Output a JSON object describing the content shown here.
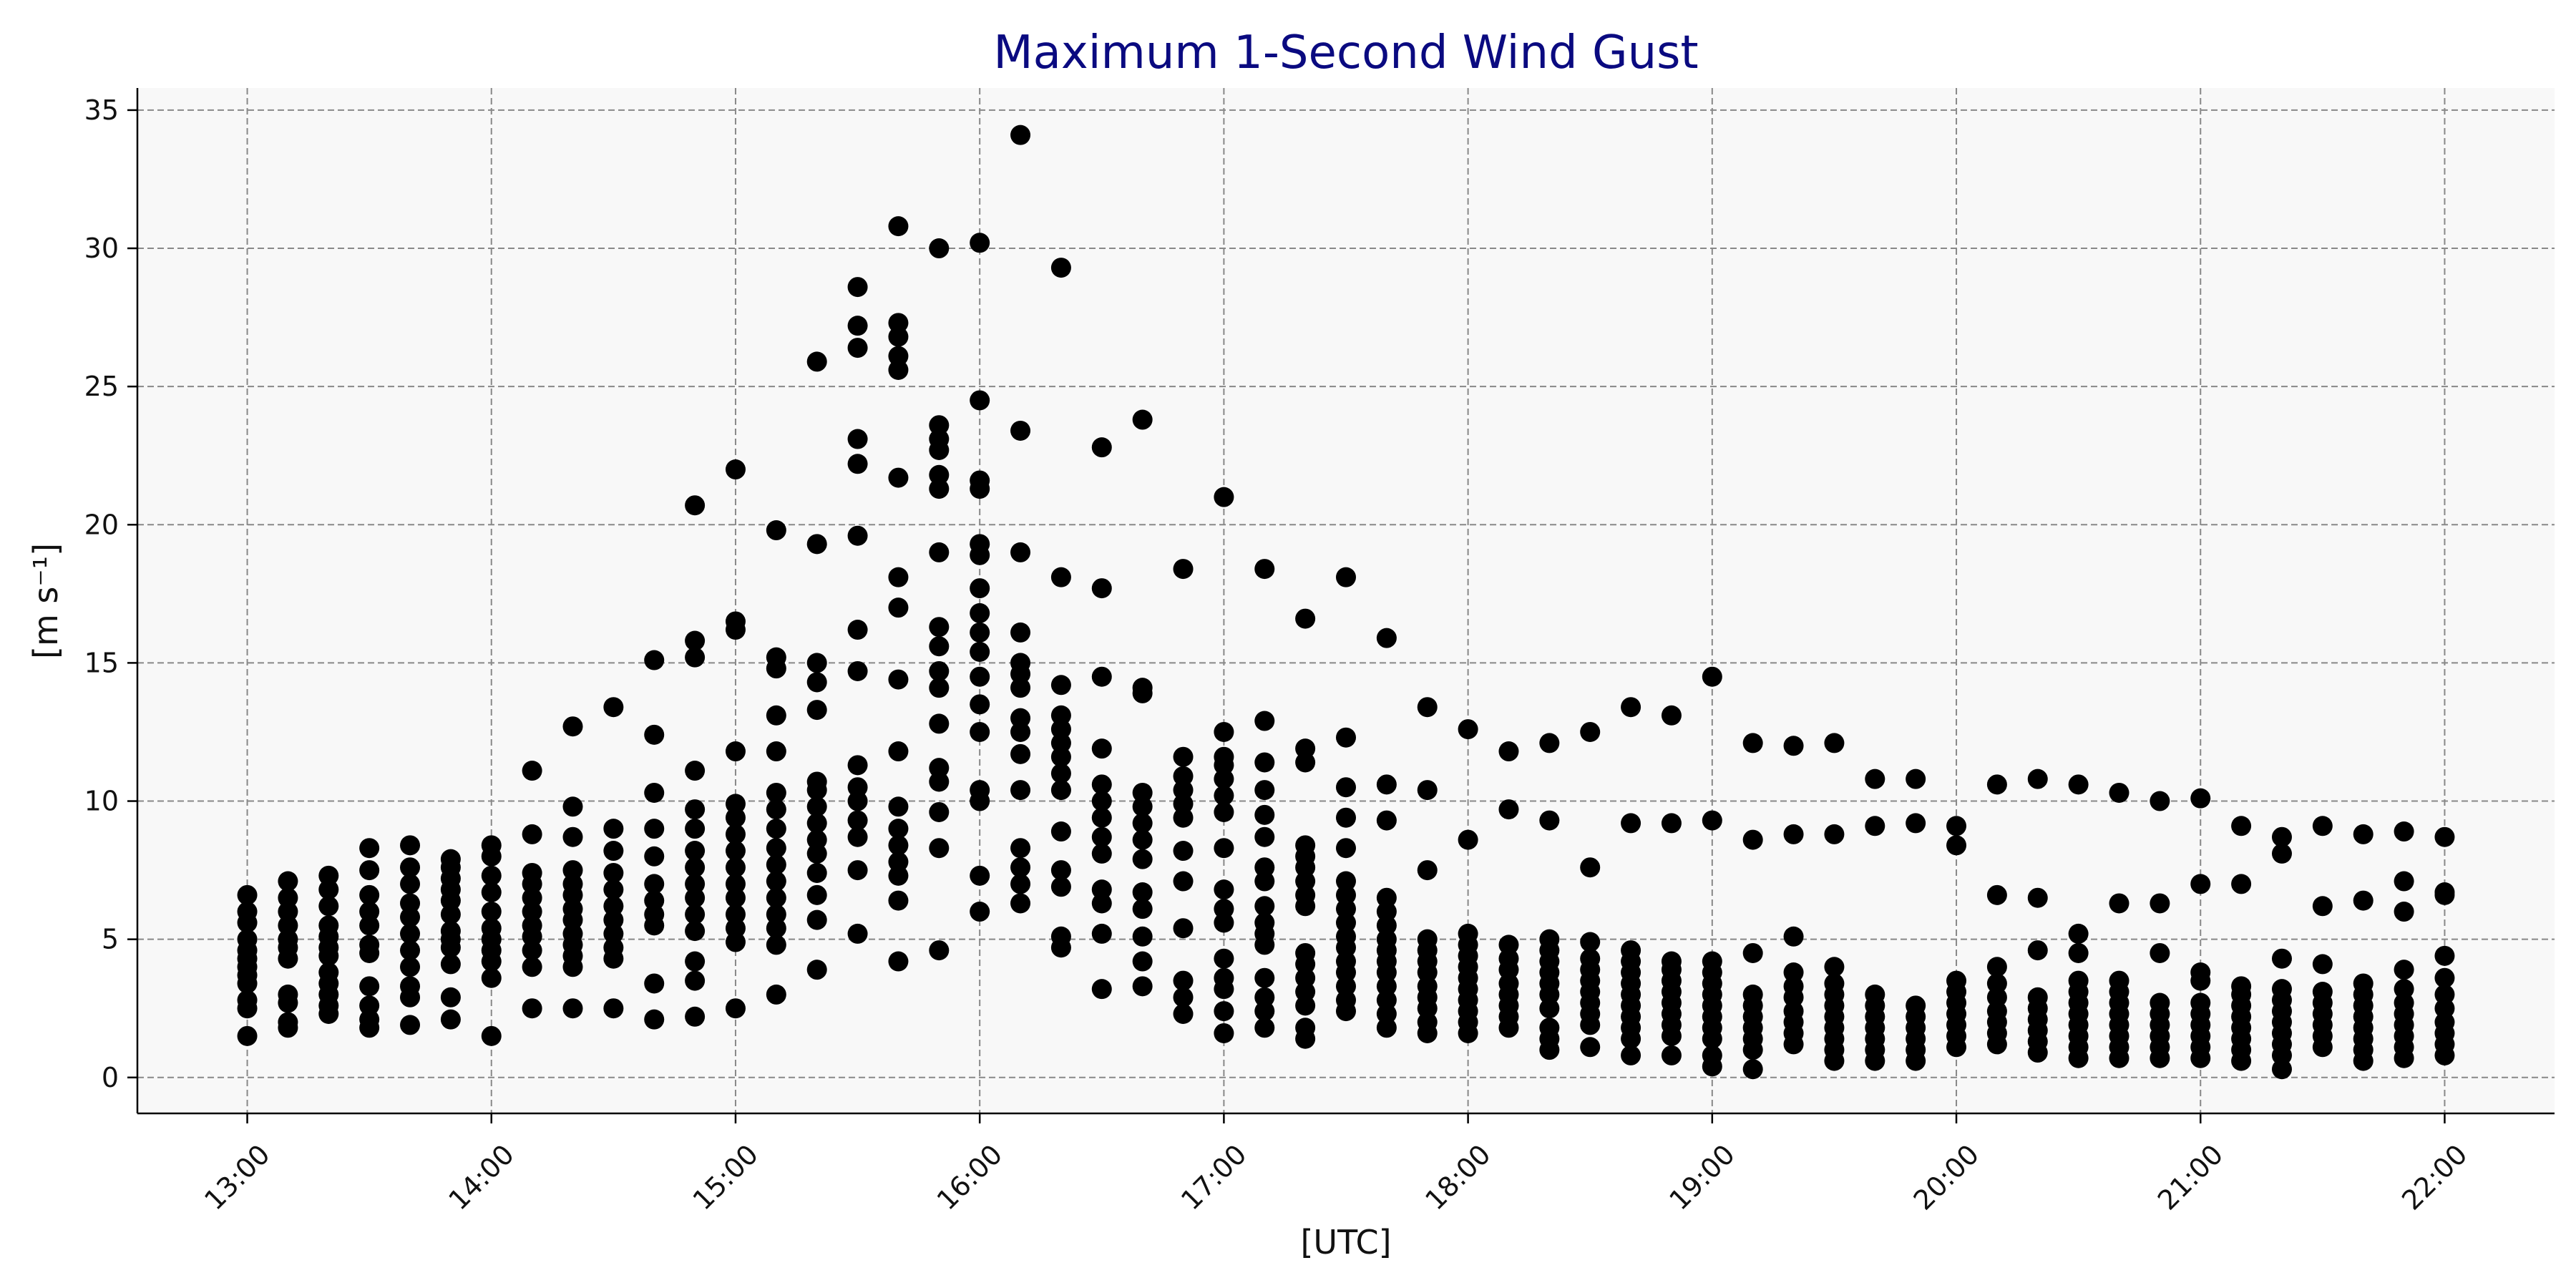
{
  "chart_data": {
    "type": "scatter",
    "title": "Maximum 1-Second Wind Gust",
    "xlabel": "[UTC]",
    "ylabel": "[m s⁻¹]",
    "x_unit": "UTC time (hours)",
    "xlim": [
      12.55,
      22.45
    ],
    "ylim": [
      -1.3,
      35.8
    ],
    "grid": true,
    "background_color": "#f8f8f8",
    "marker_color": "#000000",
    "title_color": "#0a0a80",
    "x_ticks": [
      {
        "value": 13,
        "label": "13:00"
      },
      {
        "value": 14,
        "label": "14:00"
      },
      {
        "value": 15,
        "label": "15:00"
      },
      {
        "value": 16,
        "label": "16:00"
      },
      {
        "value": 17,
        "label": "17:00"
      },
      {
        "value": 18,
        "label": "18:00"
      },
      {
        "value": 19,
        "label": "19:00"
      },
      {
        "value": 20,
        "label": "20:00"
      },
      {
        "value": 21,
        "label": "21:00"
      },
      {
        "value": 22,
        "label": "22:00"
      }
    ],
    "y_ticks": [
      0,
      5,
      10,
      15,
      20,
      25,
      30,
      35
    ],
    "series": [
      {
        "x": "13:00",
        "values": [
          1.5,
          2.5,
          2.8,
          3.4,
          3.7,
          4.0,
          4.3,
          4.6,
          5.0,
          5.6,
          6.0,
          6.6
        ]
      },
      {
        "x": "13:10",
        "values": [
          1.8,
          2.0,
          2.7,
          3.0,
          4.3,
          4.7,
          5.0,
          5.5,
          6.0,
          6.5,
          7.1
        ]
      },
      {
        "x": "13:20",
        "values": [
          2.3,
          2.6,
          3.0,
          3.4,
          3.8,
          4.4,
          4.7,
          5.1,
          5.5,
          6.2,
          6.8,
          7.3
        ]
      },
      {
        "x": "13:30",
        "values": [
          1.8,
          2.1,
          2.6,
          3.3,
          4.5,
          4.8,
          5.5,
          6.0,
          6.6,
          7.5,
          8.3
        ]
      },
      {
        "x": "13:40",
        "values": [
          1.9,
          2.9,
          3.3,
          4.0,
          4.6,
          5.2,
          5.8,
          6.3,
          7.0,
          7.6,
          8.4
        ]
      },
      {
        "x": "13:50",
        "values": [
          2.1,
          2.9,
          4.1,
          4.7,
          5.0,
          5.3,
          5.9,
          6.4,
          6.8,
          7.2,
          7.6,
          7.9
        ]
      },
      {
        "x": "14:00",
        "values": [
          1.5,
          3.6,
          4.2,
          4.6,
          5.0,
          5.4,
          6.0,
          6.7,
          7.3,
          8.0,
          8.4
        ]
      },
      {
        "x": "14:10",
        "values": [
          2.5,
          4.0,
          4.6,
          5.1,
          5.5,
          6.0,
          6.5,
          7.0,
          7.4,
          8.8,
          11.1
        ]
      },
      {
        "x": "14:20",
        "values": [
          2.5,
          4.0,
          4.4,
          4.8,
          5.2,
          5.7,
          6.1,
          6.6,
          7.0,
          7.5,
          8.7,
          9.8,
          12.7
        ]
      },
      {
        "x": "14:30",
        "values": [
          2.5,
          4.3,
          4.7,
          5.2,
          5.7,
          6.2,
          6.8,
          7.4,
          8.2,
          9.0,
          13.4
        ]
      },
      {
        "x": "14:40",
        "values": [
          2.1,
          3.4,
          5.5,
          5.9,
          6.4,
          7.0,
          8.0,
          9.0,
          10.3,
          12.4,
          15.1
        ]
      },
      {
        "x": "14:50",
        "values": [
          2.2,
          3.5,
          4.2,
          5.3,
          5.9,
          6.5,
          7.0,
          7.6,
          8.2,
          9.0,
          9.7,
          11.1,
          15.2,
          15.8,
          20.7
        ]
      },
      {
        "x": "15:00",
        "values": [
          2.5,
          4.9,
          5.4,
          5.9,
          6.5,
          7.0,
          7.6,
          8.2,
          8.8,
          9.4,
          9.9,
          11.8,
          16.2,
          16.5,
          22.0
        ]
      },
      {
        "x": "15:10",
        "values": [
          3.0,
          4.8,
          5.4,
          5.9,
          6.5,
          7.1,
          7.7,
          8.3,
          9.0,
          9.7,
          10.3,
          11.8,
          13.1,
          14.8,
          15.2,
          19.8
        ]
      },
      {
        "x": "15:20",
        "values": [
          3.9,
          5.7,
          6.6,
          7.4,
          8.1,
          8.6,
          9.2,
          9.8,
          10.4,
          10.7,
          13.3,
          14.3,
          15.0,
          19.3,
          25.9
        ]
      },
      {
        "x": "15:30",
        "values": [
          5.2,
          7.5,
          8.7,
          9.3,
          10.0,
          10.5,
          11.3,
          14.7,
          16.2,
          19.6,
          22.2,
          23.1,
          26.4,
          27.2,
          28.6
        ]
      },
      {
        "x": "15:40",
        "values": [
          4.2,
          6.4,
          7.3,
          7.8,
          8.4,
          9.0,
          9.8,
          11.8,
          14.4,
          17.0,
          18.1,
          21.7,
          25.6,
          26.1,
          26.8,
          27.3,
          30.8
        ]
      },
      {
        "x": "15:50",
        "values": [
          4.6,
          8.3,
          9.6,
          10.7,
          11.2,
          12.8,
          14.1,
          14.7,
          15.6,
          16.3,
          19.0,
          21.3,
          21.8,
          22.7,
          23.1,
          23.6,
          30.0
        ]
      },
      {
        "x": "16:00",
        "values": [
          6.0,
          7.3,
          10.0,
          10.4,
          12.5,
          13.5,
          14.5,
          15.4,
          16.1,
          16.8,
          17.7,
          18.9,
          19.3,
          21.3,
          21.6,
          24.5,
          30.2
        ]
      },
      {
        "x": "16:10",
        "values": [
          6.3,
          7.0,
          7.6,
          8.3,
          10.4,
          11.7,
          12.5,
          13.0,
          14.1,
          14.6,
          15.0,
          16.1,
          19.0,
          23.4,
          34.1
        ]
      },
      {
        "x": "16:20",
        "values": [
          4.7,
          5.1,
          6.9,
          7.5,
          8.9,
          10.4,
          11.0,
          11.6,
          12.1,
          12.6,
          13.1,
          14.2,
          18.1,
          29.3
        ]
      },
      {
        "x": "16:30",
        "values": [
          3.2,
          5.2,
          6.3,
          6.8,
          8.1,
          8.7,
          9.4,
          10.0,
          10.6,
          11.9,
          14.5,
          17.7,
          22.8
        ]
      },
      {
        "x": "16:40",
        "values": [
          3.3,
          4.2,
          5.1,
          6.1,
          6.7,
          7.9,
          8.6,
          9.2,
          9.8,
          10.3,
          13.9,
          14.1,
          23.8
        ]
      },
      {
        "x": "16:50",
        "values": [
          2.3,
          2.9,
          3.5,
          5.4,
          7.1,
          8.2,
          9.4,
          9.9,
          10.4,
          10.9,
          11.6,
          18.4
        ]
      },
      {
        "x": "17:00",
        "values": [
          1.6,
          2.4,
          3.2,
          3.6,
          4.3,
          5.6,
          6.1,
          6.8,
          8.3,
          9.6,
          10.2,
          10.8,
          11.3,
          11.6,
          12.5,
          21.0
        ]
      },
      {
        "x": "17:10",
        "values": [
          1.8,
          2.4,
          2.9,
          3.6,
          4.8,
          5.2,
          5.6,
          6.2,
          7.1,
          7.6,
          8.7,
          9.5,
          10.4,
          11.4,
          12.9,
          18.4
        ]
      },
      {
        "x": "17:20",
        "values": [
          1.4,
          1.8,
          2.6,
          3.1,
          3.6,
          4.1,
          4.5,
          6.2,
          6.6,
          7.1,
          7.6,
          8.0,
          8.4,
          11.4,
          11.9,
          16.6
        ]
      },
      {
        "x": "17:30",
        "values": [
          2.4,
          2.8,
          3.3,
          3.8,
          4.2,
          4.7,
          5.1,
          5.6,
          6.1,
          6.6,
          7.1,
          8.3,
          9.4,
          10.5,
          12.3,
          18.1
        ]
      },
      {
        "x": "17:40",
        "values": [
          1.8,
          2.3,
          2.8,
          3.3,
          3.8,
          4.2,
          4.6,
          5.0,
          5.5,
          6.0,
          6.5,
          9.3,
          10.6,
          15.9
        ]
      },
      {
        "x": "17:50",
        "values": [
          1.6,
          2.0,
          2.5,
          2.9,
          3.3,
          3.8,
          4.2,
          4.6,
          5.0,
          7.5,
          10.4,
          13.4
        ]
      },
      {
        "x": "18:00",
        "values": [
          1.6,
          2.0,
          2.4,
          2.8,
          3.2,
          3.6,
          4.0,
          4.4,
          4.8,
          5.2,
          8.6,
          12.6
        ]
      },
      {
        "x": "18:10",
        "values": [
          1.8,
          2.2,
          2.6,
          3.0,
          3.4,
          3.9,
          4.3,
          4.8,
          9.7,
          11.8
        ]
      },
      {
        "x": "18:20",
        "values": [
          1.0,
          1.4,
          1.8,
          2.5,
          3.0,
          3.4,
          3.8,
          4.2,
          4.6,
          5.0,
          9.3,
          12.1
        ]
      },
      {
        "x": "18:30",
        "values": [
          1.1,
          1.9,
          2.3,
          2.7,
          3.1,
          3.5,
          3.9,
          4.3,
          4.9,
          7.6,
          12.5
        ]
      },
      {
        "x": "18:40",
        "values": [
          0.8,
          1.4,
          1.8,
          2.2,
          2.6,
          3.0,
          3.4,
          3.8,
          4.2,
          4.6,
          9.2,
          13.4
        ]
      },
      {
        "x": "18:50",
        "values": [
          0.8,
          1.5,
          1.9,
          2.3,
          2.7,
          3.1,
          3.5,
          3.9,
          4.2,
          9.2,
          13.1
        ]
      },
      {
        "x": "19:00",
        "values": [
          0.4,
          0.8,
          1.4,
          1.8,
          2.2,
          2.6,
          3.0,
          3.4,
          3.8,
          4.2,
          9.3,
          14.5
        ]
      },
      {
        "x": "19:10",
        "values": [
          0.3,
          1.0,
          1.4,
          1.8,
          2.2,
          2.6,
          3.0,
          4.5,
          8.6,
          12.1
        ]
      },
      {
        "x": "19:20",
        "values": [
          1.2,
          1.6,
          2.0,
          2.4,
          2.9,
          3.3,
          3.8,
          5.1,
          8.8,
          12.0
        ]
      },
      {
        "x": "19:30",
        "values": [
          0.6,
          1.0,
          1.4,
          1.8,
          2.2,
          2.6,
          3.0,
          3.4,
          4.0,
          8.8,
          12.1
        ]
      },
      {
        "x": "19:40",
        "values": [
          0.6,
          1.0,
          1.4,
          1.8,
          2.2,
          2.6,
          3.0,
          9.1,
          10.8
        ]
      },
      {
        "x": "19:50",
        "values": [
          0.6,
          1.0,
          1.4,
          1.8,
          2.2,
          2.6,
          9.2,
          10.8
        ]
      },
      {
        "x": "20:00",
        "values": [
          1.1,
          1.5,
          1.9,
          2.3,
          2.7,
          3.1,
          3.5,
          8.4,
          9.1
        ]
      },
      {
        "x": "20:10",
        "values": [
          1.2,
          1.6,
          2.0,
          2.4,
          2.9,
          3.4,
          4.0,
          6.6,
          10.6
        ]
      },
      {
        "x": "20:20",
        "values": [
          0.9,
          1.3,
          1.7,
          2.1,
          2.5,
          2.9,
          4.6,
          6.5,
          10.8
        ]
      },
      {
        "x": "20:30",
        "values": [
          0.7,
          1.1,
          1.5,
          1.9,
          2.3,
          2.7,
          3.1,
          3.5,
          4.5,
          5.2,
          10.6
        ]
      },
      {
        "x": "20:40",
        "values": [
          0.7,
          1.1,
          1.5,
          1.9,
          2.3,
          2.7,
          3.1,
          3.5,
          6.3,
          10.3
        ]
      },
      {
        "x": "20:50",
        "values": [
          0.7,
          1.1,
          1.5,
          1.9,
          2.3,
          2.7,
          4.5,
          6.3,
          10.0
        ]
      },
      {
        "x": "21:00",
        "values": [
          0.7,
          1.1,
          1.5,
          1.9,
          2.3,
          2.7,
          3.5,
          3.8,
          7.0,
          10.1
        ]
      },
      {
        "x": "21:10",
        "values": [
          0.6,
          1.0,
          1.4,
          1.8,
          2.2,
          2.6,
          3.0,
          3.3,
          7.0,
          9.1
        ]
      },
      {
        "x": "21:20",
        "values": [
          0.3,
          0.8,
          1.2,
          1.6,
          2.0,
          2.4,
          2.8,
          3.2,
          4.3,
          8.1,
          8.7
        ]
      },
      {
        "x": "21:30",
        "values": [
          1.1,
          1.5,
          1.9,
          2.3,
          2.7,
          3.1,
          4.1,
          6.2,
          9.1
        ]
      },
      {
        "x": "21:40",
        "values": [
          0.6,
          1.0,
          1.4,
          1.8,
          2.2,
          2.6,
          3.0,
          3.4,
          6.4,
          8.8
        ]
      },
      {
        "x": "21:50",
        "values": [
          0.7,
          1.1,
          1.5,
          1.9,
          2.3,
          2.7,
          3.2,
          3.9,
          6.0,
          7.1,
          8.9
        ]
      },
      {
        "x": "22:00",
        "values": [
          0.8,
          1.2,
          1.6,
          2.0,
          2.5,
          3.0,
          3.6,
          4.4,
          6.6,
          6.7,
          8.7
        ]
      }
    ]
  }
}
